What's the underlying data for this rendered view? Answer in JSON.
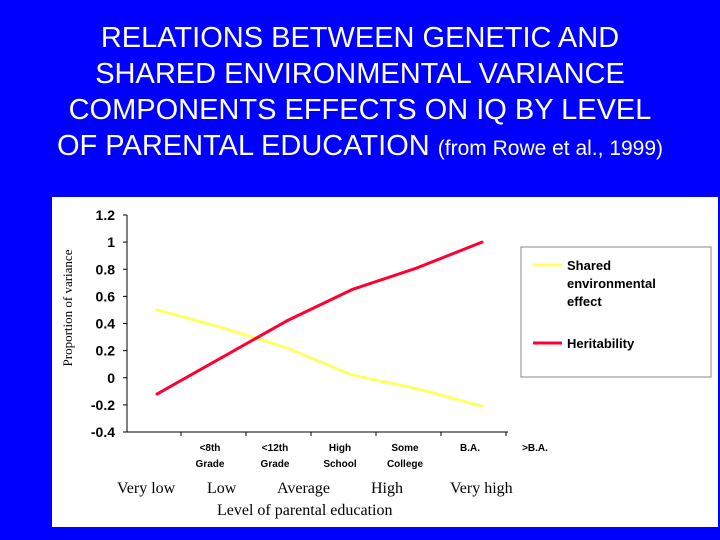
{
  "slide": {
    "title_lines": [
      "RELATIONS BETWEEN GENETIC AND",
      "SHARED ENVIRONMENTAL VARIANCE",
      "COMPONENTS EFFECTS ON IQ BY LEVEL",
      "OF PARENTAL EDUCATION"
    ],
    "title_citation": "(from Rowe et al., 1999)",
    "bottom_scale": [
      "Very low",
      "Low",
      "Average",
      "High",
      "Very high"
    ],
    "bottom_xlabel": "Level of parental education"
  },
  "chart_data": {
    "type": "line",
    "title": "",
    "ylabel": "Proportion of variance",
    "xlabel": "",
    "ylim": [
      -0.4,
      1.2
    ],
    "yticks": [
      "1.2",
      "1",
      "0.8",
      "0.6",
      "0.4",
      "0.2",
      "0",
      "-0.2",
      "-0.4"
    ],
    "categories": [
      [
        "<8th",
        "Grade"
      ],
      [
        "<12th",
        "Grade"
      ],
      [
        "High",
        "School"
      ],
      [
        "Some",
        "College"
      ],
      [
        "B.A.",
        ""
      ],
      [
        ">B.A.",
        ""
      ]
    ],
    "series": [
      {
        "name": "Shared environmental effect",
        "legend_lines": [
          "Shared",
          "environmental",
          "effect"
        ],
        "color": "#ffff66",
        "values": [
          0.5,
          0.37,
          0.22,
          0.02,
          -0.08,
          -0.21
        ]
      },
      {
        "name": "Heritability",
        "legend_lines": [
          "Heritability"
        ],
        "color": "#ff0033",
        "values": [
          -0.12,
          0.15,
          0.42,
          0.65,
          0.81,
          1.0
        ]
      }
    ],
    "legend_position": "right",
    "grid": false,
    "plot_background": "#ffffff",
    "page_background": "#0000ff"
  }
}
